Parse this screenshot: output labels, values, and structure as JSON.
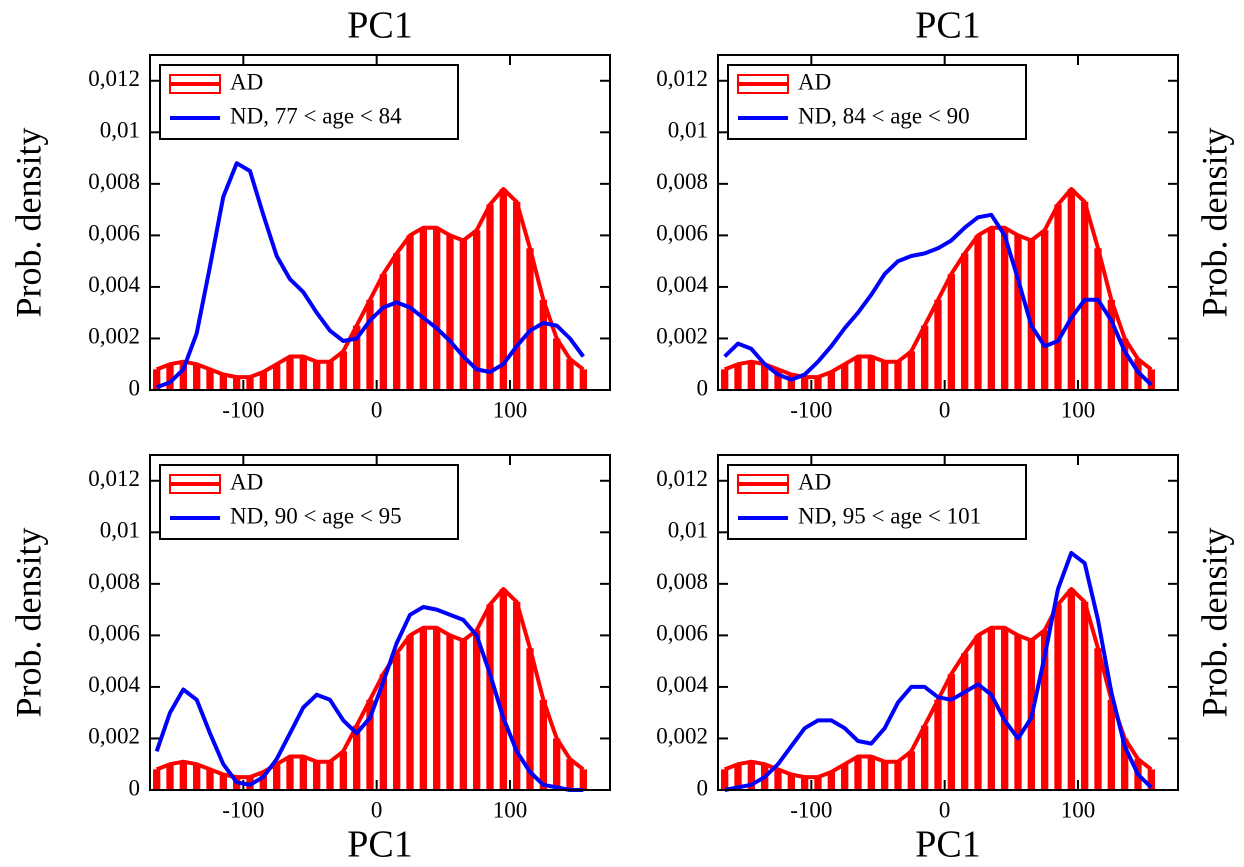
{
  "chart_data": [
    {
      "type": "line",
      "x_label": "PC1",
      "x_label_position": "top",
      "y_label": "Prob. density",
      "y_label_side": "left",
      "legend": "upper left",
      "x": [
        -165,
        -155,
        -145,
        -135,
        -125,
        -115,
        -105,
        -95,
        -85,
        -75,
        -65,
        -55,
        -45,
        -35,
        -25,
        -15,
        -5,
        5,
        15,
        25,
        35,
        45,
        55,
        65,
        75,
        85,
        95,
        105,
        115,
        125,
        135,
        145,
        155
      ],
      "xlim": [
        -170,
        175
      ],
      "xticks": [
        -100,
        0,
        100
      ],
      "ylim": [
        0,
        0.013
      ],
      "yticks": [
        0,
        {
          "value": 0.002,
          "label": "0,002"
        },
        {
          "value": 0.004,
          "label": "0,004"
        },
        {
          "value": 0.006,
          "label": "0,006"
        },
        {
          "value": 0.008,
          "label": "0,008"
        },
        {
          "value": 0.01,
          "label": "0,01"
        },
        {
          "value": 0.012,
          "label": "0,012"
        }
      ],
      "series": [
        {
          "name": "AD",
          "color": "#ff0000",
          "style": "bars",
          "values": [
            0.0008,
            0.001,
            0.0011,
            0.001,
            0.0008,
            0.0006,
            0.0005,
            0.0005,
            0.0007,
            0.001,
            0.0013,
            0.0013,
            0.0011,
            0.0011,
            0.0015,
            0.0025,
            0.0035,
            0.0045,
            0.0053,
            0.006,
            0.0063,
            0.0063,
            0.006,
            0.0058,
            0.0062,
            0.0072,
            0.0078,
            0.0073,
            0.0055,
            0.0035,
            0.002,
            0.0012,
            0.0008
          ]
        },
        {
          "name": "ND, 77 < age < 84",
          "color": "#0000ff",
          "style": "line",
          "values": [
            0.0001,
            0.0003,
            0.0008,
            0.0022,
            0.0048,
            0.0075,
            0.0088,
            0.0085,
            0.0068,
            0.0052,
            0.0043,
            0.0038,
            0.003,
            0.0023,
            0.0019,
            0.002,
            0.0027,
            0.0032,
            0.0034,
            0.0032,
            0.0028,
            0.0024,
            0.0019,
            0.0013,
            0.0008,
            0.0007,
            0.001,
            0.0017,
            0.0023,
            0.0026,
            0.0025,
            0.002,
            0.0013
          ]
        }
      ]
    },
    {
      "type": "line",
      "x_label": "PC1",
      "x_label_position": "top",
      "y_label": "Prob. density",
      "y_label_side": "right",
      "legend": "upper left",
      "x": [
        -165,
        -155,
        -145,
        -135,
        -125,
        -115,
        -105,
        -95,
        -85,
        -75,
        -65,
        -55,
        -45,
        -35,
        -25,
        -15,
        -5,
        5,
        15,
        25,
        35,
        45,
        55,
        65,
        75,
        85,
        95,
        105,
        115,
        125,
        135,
        145,
        155
      ],
      "xlim": [
        -170,
        175
      ],
      "xticks": [
        -100,
        0,
        100
      ],
      "ylim": [
        0,
        0.013
      ],
      "yticks": [
        0,
        {
          "value": 0.002,
          "label": "0,002"
        },
        {
          "value": 0.004,
          "label": "0,004"
        },
        {
          "value": 0.006,
          "label": "0,006"
        },
        {
          "value": 0.008,
          "label": "0,008"
        },
        {
          "value": 0.01,
          "label": "0,01"
        },
        {
          "value": 0.012,
          "label": "0,012"
        }
      ],
      "series": [
        {
          "name": "AD",
          "color": "#ff0000",
          "style": "bars",
          "values": [
            0.0008,
            0.001,
            0.0011,
            0.001,
            0.0008,
            0.0006,
            0.0005,
            0.0005,
            0.0007,
            0.001,
            0.0013,
            0.0013,
            0.0011,
            0.0011,
            0.0015,
            0.0025,
            0.0035,
            0.0045,
            0.0053,
            0.006,
            0.0063,
            0.0063,
            0.006,
            0.0058,
            0.0062,
            0.0072,
            0.0078,
            0.0073,
            0.0055,
            0.0035,
            0.002,
            0.0012,
            0.0008
          ]
        },
        {
          "name": "ND, 84 < age < 90",
          "color": "#0000ff",
          "style": "line",
          "values": [
            0.0013,
            0.0018,
            0.0016,
            0.001,
            0.0006,
            0.0004,
            0.0006,
            0.0011,
            0.0017,
            0.0024,
            0.003,
            0.0037,
            0.0045,
            0.005,
            0.0052,
            0.0053,
            0.0055,
            0.0058,
            0.0063,
            0.0067,
            0.0068,
            0.006,
            0.0043,
            0.0025,
            0.0017,
            0.0019,
            0.0028,
            0.0035,
            0.0035,
            0.0027,
            0.0015,
            0.0007,
            0.0002
          ]
        }
      ]
    },
    {
      "type": "line",
      "x_label": "PC1",
      "x_label_position": "bottom",
      "y_label": "Prob. density",
      "y_label_side": "left",
      "legend": "upper left",
      "x": [
        -165,
        -155,
        -145,
        -135,
        -125,
        -115,
        -105,
        -95,
        -85,
        -75,
        -65,
        -55,
        -45,
        -35,
        -25,
        -15,
        -5,
        5,
        15,
        25,
        35,
        45,
        55,
        65,
        75,
        85,
        95,
        105,
        115,
        125,
        135,
        145,
        155
      ],
      "xlim": [
        -170,
        175
      ],
      "xticks": [
        -100,
        0,
        100
      ],
      "ylim": [
        0,
        0.013
      ],
      "yticks": [
        0,
        {
          "value": 0.002,
          "label": "0,002"
        },
        {
          "value": 0.004,
          "label": "0,004"
        },
        {
          "value": 0.006,
          "label": "0,006"
        },
        {
          "value": 0.008,
          "label": "0,008"
        },
        {
          "value": 0.01,
          "label": "0,01"
        },
        {
          "value": 0.012,
          "label": "0,012"
        }
      ],
      "series": [
        {
          "name": "AD",
          "color": "#ff0000",
          "style": "bars",
          "values": [
            0.0008,
            0.001,
            0.0011,
            0.001,
            0.0008,
            0.0006,
            0.0005,
            0.0005,
            0.0007,
            0.001,
            0.0013,
            0.0013,
            0.0011,
            0.0011,
            0.0015,
            0.0025,
            0.0035,
            0.0045,
            0.0053,
            0.006,
            0.0063,
            0.0063,
            0.006,
            0.0058,
            0.0062,
            0.0072,
            0.0078,
            0.0073,
            0.0055,
            0.0035,
            0.002,
            0.0012,
            0.0008
          ]
        },
        {
          "name": "ND, 90 < age < 95",
          "color": "#0000ff",
          "style": "line",
          "values": [
            0.0015,
            0.003,
            0.0039,
            0.0035,
            0.0022,
            0.001,
            0.0003,
            0.0002,
            0.0005,
            0.0012,
            0.0022,
            0.0032,
            0.0037,
            0.0035,
            0.0027,
            0.0022,
            0.0028,
            0.0042,
            0.0057,
            0.0068,
            0.0071,
            0.007,
            0.0068,
            0.0066,
            0.006,
            0.0045,
            0.0028,
            0.0015,
            0.0007,
            0.0002,
            0.0001,
            0,
            0
          ]
        }
      ]
    },
    {
      "type": "line",
      "x_label": "PC1",
      "x_label_position": "bottom",
      "y_label": "Prob. density",
      "y_label_side": "right",
      "legend": "upper left",
      "x": [
        -165,
        -155,
        -145,
        -135,
        -125,
        -115,
        -105,
        -95,
        -85,
        -75,
        -65,
        -55,
        -45,
        -35,
        -25,
        -15,
        -5,
        5,
        15,
        25,
        35,
        45,
        55,
        65,
        75,
        85,
        95,
        105,
        115,
        125,
        135,
        145,
        155
      ],
      "xlim": [
        -170,
        175
      ],
      "xticks": [
        -100,
        0,
        100
      ],
      "ylim": [
        0,
        0.013
      ],
      "yticks": [
        0,
        {
          "value": 0.002,
          "label": "0,002"
        },
        {
          "value": 0.004,
          "label": "0,004"
        },
        {
          "value": 0.006,
          "label": "0,006"
        },
        {
          "value": 0.008,
          "label": "0,008"
        },
        {
          "value": 0.01,
          "label": "0,01"
        },
        {
          "value": 0.012,
          "label": "0,012"
        }
      ],
      "series": [
        {
          "name": "AD",
          "color": "#ff0000",
          "style": "bars",
          "values": [
            0.0008,
            0.001,
            0.0011,
            0.001,
            0.0008,
            0.0006,
            0.0005,
            0.0005,
            0.0007,
            0.001,
            0.0013,
            0.0013,
            0.0011,
            0.0011,
            0.0015,
            0.0025,
            0.0035,
            0.0045,
            0.0053,
            0.006,
            0.0063,
            0.0063,
            0.006,
            0.0058,
            0.0062,
            0.0072,
            0.0078,
            0.0073,
            0.0055,
            0.0035,
            0.002,
            0.0012,
            0.0008
          ]
        },
        {
          "name": "ND, 95 < age < 101",
          "color": "#0000ff",
          "style": "line",
          "values": [
            0,
            0.0001,
            0.0002,
            0.0005,
            0.001,
            0.0017,
            0.0024,
            0.0027,
            0.0027,
            0.0024,
            0.0019,
            0.0018,
            0.0024,
            0.0034,
            0.004,
            0.004,
            0.0036,
            0.0035,
            0.0038,
            0.0041,
            0.0037,
            0.0027,
            0.002,
            0.0028,
            0.0052,
            0.0078,
            0.0092,
            0.0088,
            0.0066,
            0.0038,
            0.0017,
            0.0006,
            0.0001
          ]
        }
      ]
    }
  ]
}
